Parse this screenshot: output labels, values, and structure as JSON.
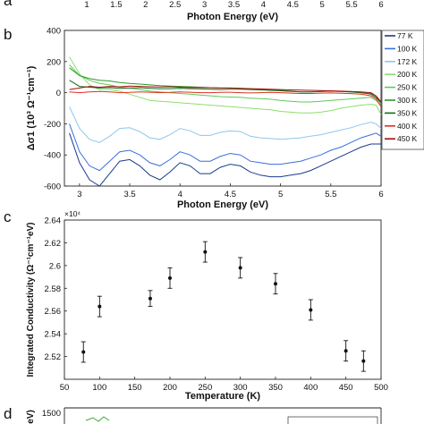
{
  "panel_a": {
    "xticks": [
      "1",
      "1.5",
      "2",
      "2.5",
      "3",
      "3.5",
      "4",
      "4.5",
      "5",
      "5.5",
      "6"
    ],
    "xlabel": "Photon Energy (eV)"
  },
  "panel_letters": {
    "a": "a",
    "b": "b",
    "c": "c",
    "d": "d"
  },
  "panel_d": {
    "ylabel_fragment": "eV)",
    "ytick": "1500"
  },
  "chart_data": [
    {
      "type": "line",
      "panel": "b",
      "xlabel": "Photon Energy (eV)",
      "ylabel": "Δσ1 (10³ Ω⁻¹cm⁻¹)",
      "xlim": [
        2.85,
        6
      ],
      "ylim": [
        -600,
        400
      ],
      "xticks": [
        3,
        3.5,
        4,
        4.5,
        5,
        5.5,
        6
      ],
      "yticks": [
        400,
        200,
        0,
        -200,
        -400,
        -600
      ],
      "legend_position": "right",
      "x": [
        2.9,
        3.0,
        3.1,
        3.2,
        3.3,
        3.4,
        3.5,
        3.6,
        3.7,
        3.8,
        3.9,
        4.0,
        4.1,
        4.2,
        4.3,
        4.4,
        4.5,
        4.6,
        4.7,
        4.8,
        4.9,
        5.0,
        5.1,
        5.2,
        5.3,
        5.4,
        5.5,
        5.6,
        5.7,
        5.8,
        5.9,
        5.95,
        6.0
      ],
      "series": [
        {
          "name": "77 K",
          "color": "#1a3a8c",
          "values": [
            -260,
            -450,
            -560,
            -600,
            -520,
            -440,
            -430,
            -470,
            -530,
            -560,
            -510,
            -450,
            -470,
            -520,
            -520,
            -480,
            -460,
            -470,
            -510,
            -530,
            -540,
            -540,
            -530,
            -520,
            -500,
            -470,
            -440,
            -410,
            -380,
            -350,
            -330,
            -330,
            -330
          ]
        },
        {
          "name": "100 K",
          "color": "#3b6ee0",
          "values": [
            -200,
            -380,
            -470,
            -500,
            -440,
            -380,
            -370,
            -400,
            -450,
            -470,
            -430,
            -380,
            -400,
            -440,
            -440,
            -410,
            -390,
            -400,
            -440,
            -450,
            -460,
            -460,
            -450,
            -440,
            -420,
            -400,
            -370,
            -350,
            -320,
            -290,
            -270,
            -260,
            -280
          ]
        },
        {
          "name": "172 K",
          "color": "#8fc6ec",
          "values": [
            -90,
            -230,
            -300,
            -320,
            -280,
            -230,
            -225,
            -250,
            -290,
            -300,
            -270,
            -230,
            -245,
            -275,
            -275,
            -255,
            -245,
            -250,
            -280,
            -290,
            -295,
            -300,
            -295,
            -290,
            -280,
            -270,
            -255,
            -240,
            -225,
            -205,
            -190,
            -200,
            -230
          ]
        },
        {
          "name": "200 K",
          "color": "#8be06a",
          "values": [
            230,
            120,
            50,
            20,
            20,
            10,
            -10,
            -30,
            -50,
            -55,
            -60,
            -65,
            -70,
            -75,
            -80,
            -85,
            -90,
            -95,
            -100,
            -105,
            -110,
            -120,
            -125,
            -130,
            -130,
            -125,
            -115,
            -100,
            -90,
            -80,
            -75,
            -80,
            -140
          ]
        },
        {
          "name": "250 K",
          "color": "#5ec85a",
          "values": [
            180,
            110,
            80,
            60,
            50,
            35,
            30,
            20,
            10,
            5,
            0,
            -5,
            -10,
            -15,
            -20,
            -25,
            -28,
            -30,
            -35,
            -38,
            -42,
            -50,
            -55,
            -60,
            -60,
            -55,
            -50,
            -45,
            -40,
            -35,
            -30,
            -50,
            -80
          ]
        },
        {
          "name": "300 K",
          "color": "#2a9a2a",
          "values": [
            160,
            110,
            90,
            80,
            75,
            65,
            60,
            55,
            50,
            45,
            42,
            40,
            38,
            35,
            32,
            30,
            30,
            28,
            25,
            22,
            20,
            15,
            10,
            5,
            5,
            8,
            10,
            8,
            5,
            0,
            -5,
            -30,
            -70
          ]
        },
        {
          "name": "350 K",
          "color": "#1a6a1a",
          "values": [
            80,
            40,
            35,
            30,
            32,
            28,
            30,
            32,
            28,
            25,
            26,
            28,
            26,
            24,
            22,
            20,
            22,
            22,
            20,
            18,
            15,
            12,
            8,
            5,
            5,
            8,
            10,
            8,
            5,
            0,
            -10,
            -30,
            -60
          ]
        },
        {
          "name": "400 K",
          "color": "#e03020",
          "values": [
            5,
            0,
            5,
            8,
            5,
            0,
            2,
            5,
            3,
            0,
            2,
            5,
            3,
            0,
            0,
            2,
            3,
            0,
            -2,
            0,
            2,
            0,
            -3,
            -5,
            -5,
            -3,
            -2,
            -4,
            -6,
            -10,
            -20,
            -40,
            -90
          ]
        },
        {
          "name": "450 K",
          "color": "#a31010",
          "values": [
            20,
            30,
            40,
            35,
            40,
            38,
            42,
            40,
            38,
            36,
            38,
            35,
            33,
            34,
            32,
            30,
            30,
            28,
            26,
            24,
            22,
            20,
            18,
            16,
            15,
            14,
            12,
            10,
            8,
            5,
            0,
            -20,
            -60
          ]
        }
      ]
    },
    {
      "type": "scatter",
      "panel": "c",
      "xlabel": "Temperature (K)",
      "ylabel": "Integrated Conductivity (Ω⁻¹cm⁻¹eV)",
      "ylabel_exponent": "×10⁴",
      "xlim": [
        50,
        500
      ],
      "ylim": [
        2.5,
        2.64
      ],
      "xticks": [
        50,
        100,
        150,
        200,
        250,
        300,
        350,
        400,
        450,
        500
      ],
      "yticks": [
        2.64,
        2.62,
        2.6,
        2.58,
        2.56,
        2.54,
        2.52
      ],
      "ytick_labels": [
        "2.64",
        "2.62",
        "2.6",
        "2.58",
        "2.56",
        "2.54",
        "2.52"
      ],
      "grid": false,
      "x": [
        77,
        100,
        172,
        200,
        250,
        300,
        350,
        400,
        450,
        475
      ],
      "values": [
        2.524,
        2.564,
        2.571,
        2.589,
        2.612,
        2.598,
        2.584,
        2.561,
        2.525,
        2.516
      ],
      "errors": [
        0.009,
        0.009,
        0.007,
        0.009,
        0.009,
        0.009,
        0.009,
        0.009,
        0.009,
        0.009
      ]
    }
  ]
}
